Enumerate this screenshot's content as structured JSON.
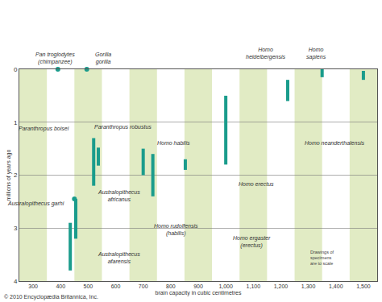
{
  "chart_data": {
    "type": "range",
    "xlabel": "brain capacity in cubic centimetres",
    "ylabel": "millions of years ago",
    "xlim": [
      250,
      1550
    ],
    "xticks": [
      300,
      400,
      500,
      600,
      700,
      800,
      900,
      {
        "value": 1000,
        "label": "1,000"
      },
      {
        "value": 1100,
        "label": "1,100"
      },
      {
        "value": 1200,
        "label": "1,200"
      },
      {
        "value": 1300,
        "label": "1,300"
      },
      {
        "value": 1400,
        "label": "1,400"
      },
      {
        "value": 1500,
        "label": "1,500"
      }
    ],
    "ylim": [
      0,
      4
    ],
    "yticks": [
      0,
      1,
      2,
      3,
      4
    ],
    "grid": true,
    "color": "#1a9c8c",
    "series": [
      {
        "name": "Pan troglodytes\n(chimpanzee)",
        "x": 390,
        "values": [
          0,
          0
        ],
        "marker": "dot"
      },
      {
        "name": "Gorilla\ngorilla",
        "x": 495,
        "values": [
          0,
          0
        ],
        "marker": "dot"
      },
      {
        "name": "Homo\nsapiens",
        "x": 1350,
        "values": [
          0,
          0.15
        ]
      },
      {
        "name": "Homo\nheidelbergensis",
        "x": 1225,
        "values": [
          0.2,
          0.6
        ]
      },
      {
        "name": "Homo neanderthalensis",
        "x": 1500,
        "values": [
          0.03,
          0.2
        ]
      },
      {
        "name": "Homo erectus",
        "x": 1000,
        "values": [
          0.5,
          1.8
        ]
      },
      {
        "name": "Paranthropus boisei",
        "x": 520,
        "values": [
          1.3,
          2.2
        ]
      },
      {
        "name": "Paranthropus robustus",
        "x": 537,
        "values": [
          1.48,
          1.82
        ]
      },
      {
        "name": "Homo habilis",
        "x": 700,
        "values": [
          1.5,
          2.0
        ]
      },
      {
        "name": "Homo rudolfensis\n(habilis)",
        "x": 735,
        "values": [
          1.6,
          2.4
        ]
      },
      {
        "name": "Homo ergaster\n(erectus)",
        "x": 853,
        "values": [
          1.7,
          1.9
        ]
      },
      {
        "name": "Australopithecus garhi",
        "x": 450,
        "values": [
          2.45,
          2.45
        ],
        "marker": "dot"
      },
      {
        "name": "Australopithecus\nafricanus",
        "x": 455,
        "values": [
          2.45,
          3.2
        ]
      },
      {
        "name": "Australopithecus\nafarensis",
        "x": 435,
        "values": [
          2.9,
          3.8
        ]
      }
    ],
    "annotations": [
      "Drawings of\nspecimens\nare to scale",
      "© 2010 Encyclopædia Britannica, Inc."
    ]
  }
}
